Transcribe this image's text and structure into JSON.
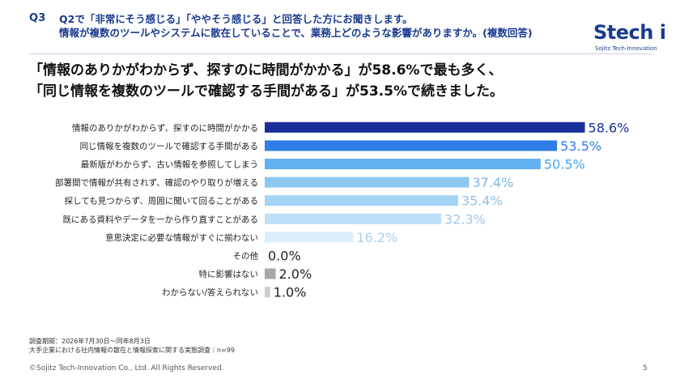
{
  "header": {
    "q_label": "Q3",
    "q_line1": "Q2で「非常にそう感じる」「ややそう感じる」と回答した方にお聞きします。",
    "q_line2": "情報が複数のツールやシステムに散在していることで、業務上どのような影響がありますか。(複数回答)"
  },
  "logo": {
    "main": "Stech i",
    "sub": "Sojitz  Tech-Innovation"
  },
  "headline": {
    "line1": "「情報のありかがわからず、探すのに時間がかかる」が58.6%で最も多く、",
    "line2": "「同じ情報を複数のツールで確認する手間がある」が53.5%で続きました。"
  },
  "chart_data": {
    "type": "bar",
    "orientation": "horizontal",
    "categories": [
      "情報のありかがわからず、探すのに時間がかかる",
      "同じ情報を複数のツールで確認する手間がある",
      "最新版がわからず、古い情報を参照してしまう",
      "部署間で情報が共有されず、確認のやり取りが増える",
      "探しても見つからず、周囲に聞いて回ることがある",
      "既にある資料やデータを一から作り直すことがある",
      "意思決定に必要な情報がすぐに揃わない",
      "その他",
      "特に影響はない",
      "わからない/答えられない"
    ],
    "values": [
      58.6,
      53.5,
      50.5,
      37.4,
      35.4,
      32.3,
      16.2,
      0.0,
      2.0,
      1.0
    ],
    "value_labels": [
      "58.6%",
      "53.5%",
      "50.5%",
      "37.4%",
      "35.4%",
      "32.3%",
      "16.2%",
      "0.0%",
      "2.0%",
      "1.0%"
    ],
    "bar_colors": [
      "#1a2f99",
      "#2f7de6",
      "#63b0ef",
      "#8cc7f2",
      "#a3d3f5",
      "#bddff8",
      "#dcedfb",
      "#ffffff",
      "#a6a6a6",
      "#cccccc"
    ],
    "label_colors": [
      "#1a2f99",
      "#2f7de6",
      "#4aa3ea",
      "#7db6e6",
      "#8fc0ea",
      "#9cc8ee",
      "#a9cfee",
      "#222222",
      "#222222",
      "#222222"
    ],
    "xlim": [
      0,
      100
    ],
    "grid": false
  },
  "footer": {
    "survey_period": "調査期間：2026年7月30日～同年8月3日",
    "survey_name": "大手企業における社内情報の散在と情報探索に関する実態調査｜n=99",
    "copyright": "©Sojitz Tech-Innovation Co., Ltd. All Rights Reserved.",
    "page": "5"
  }
}
